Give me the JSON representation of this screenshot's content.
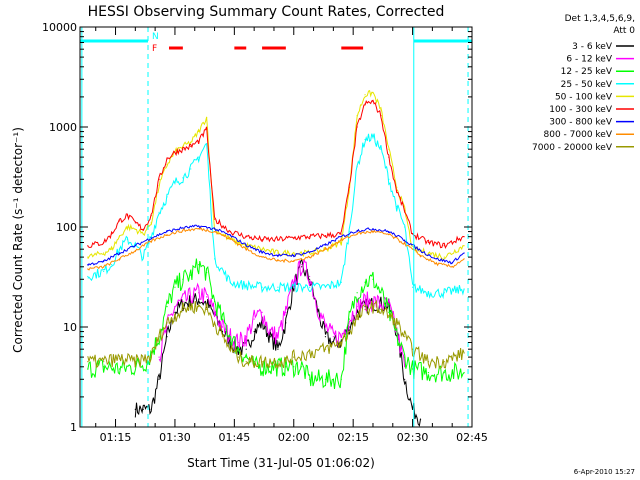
{
  "chart_data": {
    "type": "line",
    "title": "HESSI Observing Summary Count Rates, Corrected",
    "xlabel": "Start Time (31-Jul-05 01:06:02)",
    "ylabel": "Corrected Count Rate (s⁻¹ detector⁻¹)",
    "yscale": "log",
    "ylim": [
      1,
      10000
    ],
    "xlim_minutes": [
      6.03,
      105
    ],
    "x_unit": "minutes after 01:00 UT",
    "x_ticks": [
      15,
      30,
      45,
      60,
      75,
      90,
      105
    ],
    "x_tick_labels": [
      "01:15",
      "01:30",
      "01:45",
      "02:00",
      "02:15",
      "02:30",
      "02:45"
    ],
    "y_ticks": [
      1,
      10,
      100,
      1000,
      10000
    ],
    "y_tick_labels": [
      "1",
      "10",
      "100",
      "1000",
      "10000"
    ],
    "legend": {
      "placement": "outside-right",
      "header": [
        "Det 1,3,4,5,6,9,",
        "Att 0"
      ],
      "entries": [
        {
          "label": "3 - 6 keV",
          "color": "#000000"
        },
        {
          "label": "6 - 12 keV",
          "color": "#ff00ff"
        },
        {
          "label": "12 - 25 keV",
          "color": "#00ff00"
        },
        {
          "label": "25 - 50 keV",
          "color": "#00ffff"
        },
        {
          "label": "50 - 100 keV",
          "color": "#e6e600"
        },
        {
          "label": "100 - 300 keV",
          "color": "#ff0000"
        },
        {
          "label": "300 - 800 keV",
          "color": "#0000ff"
        },
        {
          "label": "800 - 7000 keV",
          "color": "#ff8c00"
        },
        {
          "label": "7000 - 20000 keV",
          "color": "#999900"
        }
      ]
    },
    "series": [
      {
        "name": "3 - 6 keV",
        "color": "#000000",
        "x": [
          20,
          22,
          24,
          26,
          28,
          30,
          32,
          34,
          36,
          38,
          40,
          42,
          44,
          46,
          48,
          50,
          52,
          54,
          56,
          58,
          60,
          62,
          64,
          66,
          68,
          70,
          72,
          74,
          76,
          78,
          80,
          82,
          84,
          86,
          88,
          90,
          92
        ],
        "y": [
          1.5,
          1.5,
          1.5,
          3,
          8,
          14,
          17,
          18,
          19,
          17,
          13,
          9,
          7,
          6,
          6,
          9,
          11,
          8,
          6,
          11,
          26,
          40,
          30,
          15,
          8,
          7,
          7,
          10,
          14,
          16,
          17,
          17,
          16,
          9,
          3,
          1.5,
          1.2
        ]
      },
      {
        "name": "6 - 12 keV",
        "color": "#ff00ff",
        "x": [
          26,
          28,
          30,
          32,
          34,
          36,
          38,
          40,
          42,
          44,
          46,
          48,
          50,
          52,
          54,
          56,
          58,
          60,
          62,
          64,
          66,
          68,
          70,
          72,
          74,
          76,
          78,
          80,
          82,
          84,
          86,
          88
        ],
        "y": [
          5,
          10,
          16,
          18,
          20,
          22,
          20,
          14,
          10,
          8,
          7,
          8,
          12,
          14,
          9,
          8,
          14,
          28,
          42,
          32,
          16,
          10,
          8,
          8,
          12,
          16,
          18,
          18,
          17,
          16,
          9,
          4
        ]
      },
      {
        "name": "12 - 25 keV",
        "color": "#00ff00",
        "x": [
          8,
          12,
          16,
          20,
          23,
          26,
          28,
          30,
          32,
          34,
          36,
          38,
          40,
          42,
          44,
          46,
          48,
          50,
          52,
          54,
          56,
          58,
          60,
          62,
          64,
          66,
          68,
          70,
          72,
          74,
          76,
          78,
          80,
          82,
          84,
          86,
          88,
          90,
          94,
          98,
          103
        ],
        "y": [
          3.8,
          4,
          3.8,
          4,
          4.5,
          8,
          16,
          25,
          30,
          33,
          42,
          35,
          18,
          12,
          8,
          6,
          5,
          4,
          4,
          4,
          4,
          4,
          4,
          4,
          3,
          3,
          3,
          3,
          3,
          12,
          22,
          28,
          30,
          22,
          14,
          8,
          5,
          3.8,
          3.5,
          3.5,
          3.5
        ]
      },
      {
        "name": "25 - 50 keV",
        "color": "#00ffff",
        "x": [
          8,
          12,
          14,
          16,
          18,
          20,
          22,
          24,
          26,
          28,
          30,
          32,
          34,
          36,
          38,
          40,
          44,
          48,
          52,
          56,
          60,
          64,
          68,
          72,
          74,
          76,
          78,
          80,
          82,
          84,
          86,
          88,
          90,
          94,
          98,
          103
        ],
        "y": [
          32,
          36,
          42,
          60,
          75,
          65,
          50,
          80,
          140,
          200,
          280,
          310,
          380,
          500,
          680,
          48,
          28,
          26,
          25,
          25,
          25,
          25,
          25,
          28,
          90,
          400,
          750,
          800,
          600,
          300,
          160,
          100,
          25,
          22,
          22,
          24
        ]
      },
      {
        "name": "50 - 100 keV",
        "color": "#e6e600",
        "x": [
          8,
          12,
          14,
          16,
          18,
          20,
          22,
          24,
          26,
          28,
          30,
          32,
          34,
          36,
          38,
          40,
          44,
          48,
          52,
          56,
          60,
          64,
          68,
          72,
          74,
          76,
          78,
          80,
          82,
          84,
          86,
          88,
          90,
          94,
          98,
          103
        ],
        "y": [
          50,
          55,
          60,
          80,
          100,
          95,
          85,
          110,
          260,
          420,
          560,
          640,
          700,
          900,
          1250,
          95,
          75,
          65,
          60,
          55,
          55,
          55,
          60,
          70,
          240,
          1300,
          2100,
          2200,
          1500,
          600,
          250,
          150,
          60,
          55,
          50,
          65
        ]
      },
      {
        "name": "100 - 300 keV",
        "color": "#ff0000",
        "x": [
          8,
          12,
          14,
          16,
          18,
          20,
          22,
          24,
          26,
          28,
          30,
          32,
          34,
          36,
          38,
          40,
          44,
          48,
          52,
          56,
          60,
          64,
          68,
          72,
          74,
          76,
          78,
          80,
          82,
          84,
          86,
          88,
          90,
          94,
          98,
          103
        ],
        "y": [
          65,
          70,
          85,
          115,
          130,
          110,
          95,
          130,
          300,
          480,
          560,
          600,
          640,
          720,
          950,
          120,
          90,
          80,
          75,
          75,
          78,
          80,
          82,
          85,
          250,
          1000,
          1700,
          1800,
          1300,
          500,
          230,
          145,
          85,
          70,
          65,
          80
        ]
      },
      {
        "name": "300 - 800 keV",
        "color": "#0000ff",
        "x": [
          8,
          12,
          16,
          20,
          24,
          28,
          32,
          36,
          40,
          44,
          48,
          52,
          56,
          60,
          64,
          68,
          72,
          76,
          80,
          84,
          88,
          92,
          96,
          100,
          103
        ],
        "y": [
          42,
          45,
          55,
          65,
          78,
          90,
          98,
          102,
          96,
          82,
          66,
          56,
          52,
          52,
          56,
          66,
          80,
          92,
          96,
          90,
          74,
          58,
          48,
          44,
          55
        ]
      },
      {
        "name": "800 - 7000 keV",
        "color": "#ff8c00",
        "x": [
          8,
          12,
          16,
          20,
          24,
          28,
          32,
          36,
          40,
          44,
          48,
          52,
          56,
          60,
          64,
          68,
          72,
          76,
          80,
          84,
          88,
          92,
          96,
          100,
          103
        ],
        "y": [
          38,
          40,
          48,
          58,
          72,
          84,
          92,
          96,
          90,
          76,
          60,
          50,
          46,
          46,
          50,
          60,
          74,
          86,
          90,
          84,
          68,
          52,
          43,
          40,
          48
        ]
      },
      {
        "name": "7000 - 20000 keV",
        "color": "#999900",
        "x": [
          8,
          12,
          16,
          20,
          24,
          26,
          28,
          30,
          32,
          34,
          36,
          38,
          40,
          42,
          44,
          46,
          48,
          50,
          52,
          54,
          56,
          58,
          60,
          64,
          68,
          72,
          74,
          76,
          78,
          80,
          82,
          84,
          86,
          88,
          90,
          94,
          98,
          103
        ],
        "y": [
          4.5,
          4.5,
          4.8,
          4.5,
          5,
          8,
          11,
          13,
          15,
          16,
          16,
          15,
          11,
          8,
          6,
          5,
          4.5,
          4.5,
          4.5,
          4.5,
          4.5,
          4.5,
          5,
          5.5,
          6,
          7,
          9,
          12,
          15,
          16,
          15,
          13,
          11,
          8,
          6,
          4.5,
          4.5,
          5.5
        ]
      }
    ],
    "flag_bars": [
      {
        "name": "N",
        "color": "#00ffff",
        "label": "N",
        "intervals": [
          [
            6.03,
            23.2
          ],
          [
            90.3,
            105
          ]
        ]
      },
      {
        "name": "F",
        "color": "#ff0000",
        "label": "F",
        "intervals": [
          [
            28.5,
            32
          ],
          [
            45,
            48
          ],
          [
            52,
            58
          ],
          [
            72,
            77.5
          ]
        ]
      }
    ],
    "vertical_markers": [
      {
        "x": 6.5,
        "style": "solid",
        "color": "#00ffff"
      },
      {
        "x": 23.2,
        "style": "dashed",
        "color": "#00ffff"
      },
      {
        "x": 90.3,
        "style": "solid",
        "color": "#00ffff"
      },
      {
        "x": 104,
        "style": "dashed",
        "color": "#00ffff"
      }
    ],
    "footer_date": "6-Apr-2010 15:27"
  }
}
